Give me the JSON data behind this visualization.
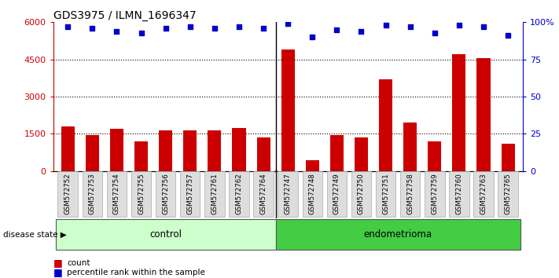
{
  "title": "GDS3975 / ILMN_1696347",
  "samples": [
    "GSM572752",
    "GSM572753",
    "GSM572754",
    "GSM572755",
    "GSM572756",
    "GSM572757",
    "GSM572761",
    "GSM572762",
    "GSM572764",
    "GSM572747",
    "GSM572748",
    "GSM572749",
    "GSM572750",
    "GSM572751",
    "GSM572758",
    "GSM572759",
    "GSM572760",
    "GSM572763",
    "GSM572765"
  ],
  "counts": [
    1800,
    1450,
    1700,
    1200,
    1650,
    1650,
    1650,
    1720,
    1350,
    4900,
    430,
    1450,
    1350,
    3700,
    1950,
    1200,
    4700,
    4550,
    1100
  ],
  "percentiles": [
    97,
    96,
    94,
    93,
    96,
    97,
    96,
    97,
    96,
    99,
    90,
    95,
    94,
    98,
    97,
    93,
    98,
    97,
    91
  ],
  "group": [
    "control",
    "control",
    "control",
    "control",
    "control",
    "control",
    "control",
    "control",
    "control",
    "endometrioma",
    "endometrioma",
    "endometrioma",
    "endometrioma",
    "endometrioma",
    "endometrioma",
    "endometrioma",
    "endometrioma",
    "endometrioma",
    "endometrioma"
  ],
  "bar_color": "#cc0000",
  "dot_color": "#0000cc",
  "ylim_left": [
    0,
    6000
  ],
  "ylim_right": [
    0,
    100
  ],
  "yticks_left": [
    0,
    1500,
    3000,
    4500,
    6000
  ],
  "yticks_right": [
    0,
    25,
    50,
    75,
    100
  ],
  "control_light": "#ccffcc",
  "endometrioma_green": "#44cc44",
  "bg_color": "#ffffff",
  "tick_label_bg": "#dddddd",
  "n_control": 9,
  "n_endometrioma": 10
}
